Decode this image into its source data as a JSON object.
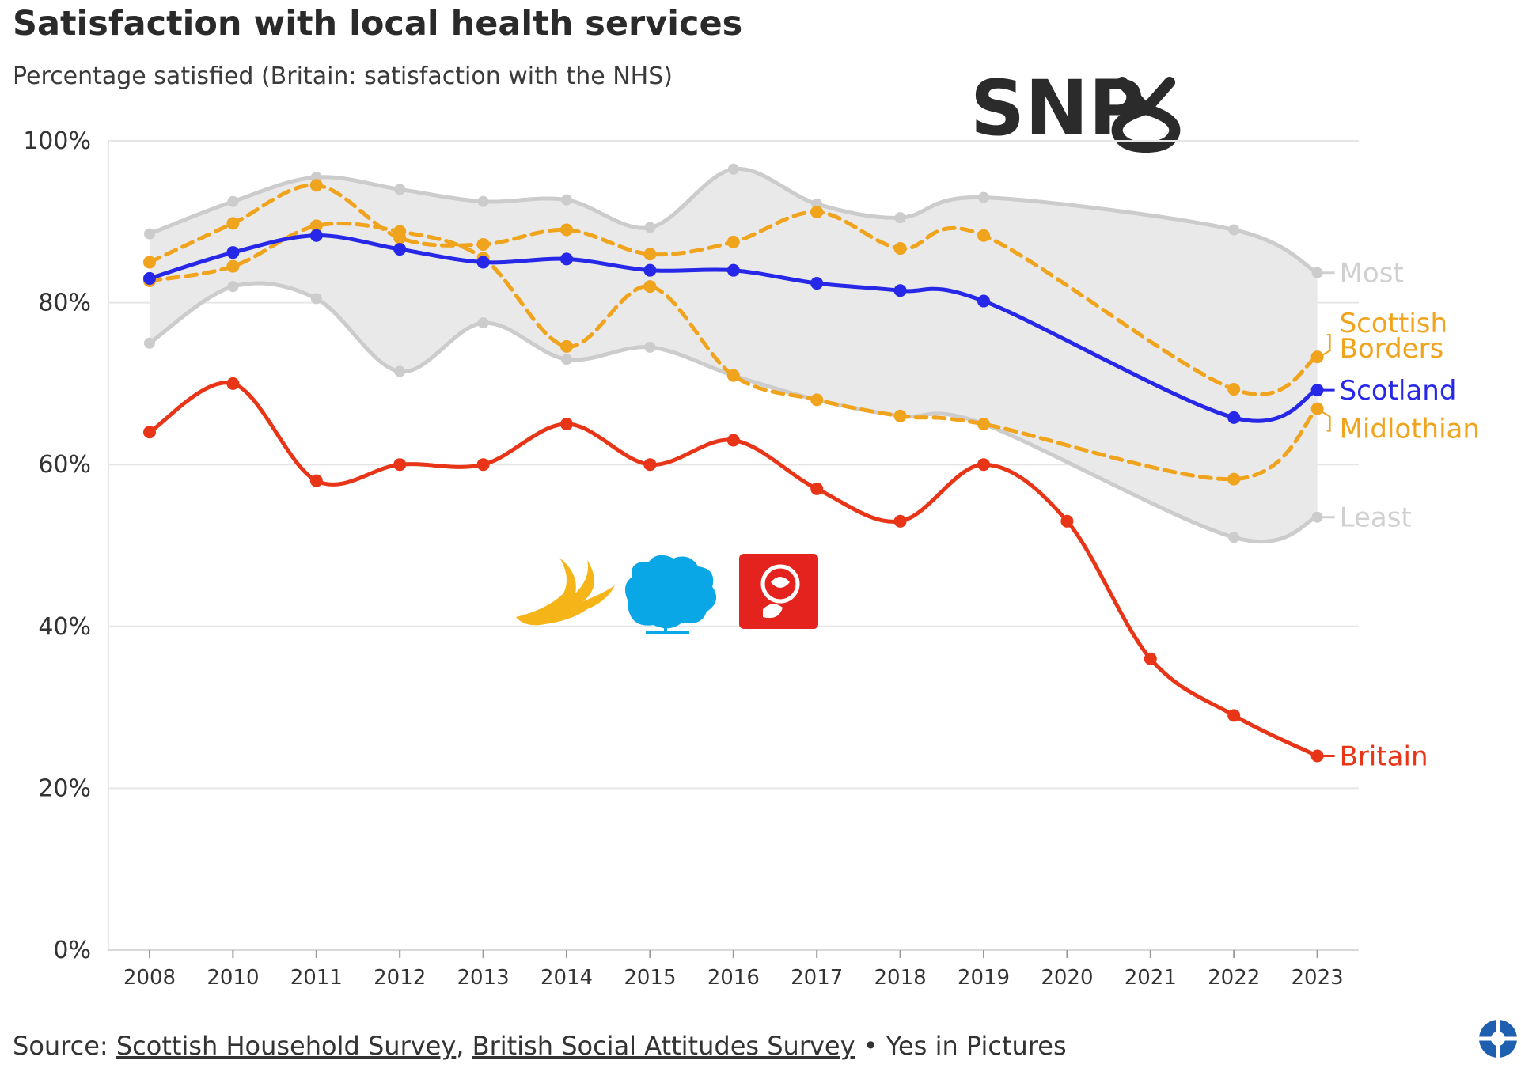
{
  "chart_data": {
    "type": "line",
    "title": "Satisfaction with local health services",
    "subtitle": "Percentage satisfied (Britain: satisfaction with the NHS)",
    "x": [
      "2008",
      "2010",
      "2011",
      "2012",
      "2013",
      "2014",
      "2015",
      "2016",
      "2017",
      "2018",
      "2019",
      "2020",
      "2021",
      "2022",
      "2023"
    ],
    "ylim": [
      0,
      100
    ],
    "yticks": [
      0,
      20,
      40,
      60,
      80,
      100
    ],
    "ytick_labels": [
      "0%",
      "20%",
      "40%",
      "60%",
      "80%",
      "100%"
    ],
    "grid": true,
    "band": {
      "upper_name": "Most",
      "lower_name": "Least",
      "upper": [
        88.5,
        92.5,
        95.5,
        94,
        92.5,
        92.7,
        89.3,
        96.5,
        92.2,
        90.5,
        93,
        null,
        null,
        89,
        83.7
      ],
      "lower": [
        75,
        82,
        80.5,
        71.5,
        77.5,
        73,
        74.5,
        71,
        68,
        66,
        65,
        null,
        null,
        51,
        53.5
      ],
      "color": "#cccccc",
      "fill": "#e9e9e9"
    },
    "series": [
      {
        "name": "Scotland",
        "color": "#2727e8",
        "style": "solid",
        "values": [
          83,
          86.2,
          88.3,
          86.6,
          85,
          85.4,
          84,
          84,
          82.4,
          81.5,
          80.2,
          null,
          null,
          65.8,
          69.2
        ]
      },
      {
        "name": "Scottish Borders",
        "color": "#f0a41e",
        "style": "dashed",
        "values": [
          85,
          89.8,
          94.5,
          88,
          87.2,
          89,
          86,
          87.5,
          91.2,
          86.7,
          88.3,
          null,
          null,
          69.3,
          73.3
        ]
      },
      {
        "name": "Midlothian",
        "color": "#f0a41e",
        "style": "dashed",
        "values": [
          82.7,
          84.5,
          89.5,
          88.8,
          85.5,
          74.6,
          82,
          71,
          68,
          66,
          65,
          null,
          null,
          58.2,
          66.9
        ]
      },
      {
        "name": "Britain",
        "color": "#e83518",
        "style": "solid",
        "values": [
          64,
          70,
          58,
          60,
          60,
          65,
          60,
          63,
          57,
          53,
          60,
          53,
          36,
          29,
          24
        ]
      }
    ],
    "end_labels": [
      {
        "text": "Most",
        "color": "#d0d0d0"
      },
      {
        "text_lines": [
          "Scottish",
          "Borders"
        ],
        "color": "#f0a41e"
      },
      {
        "text": "Scotland",
        "color": "#2727e8"
      },
      {
        "text": "Midlothian",
        "color": "#f0a41e"
      },
      {
        "text": "Least",
        "color": "#d0d0d0"
      },
      {
        "text": "Britain",
        "color": "#e83518"
      }
    ]
  },
  "logos": {
    "snp_text": "SNP",
    "snp_color": "#2b2b2b",
    "libdem_color": "#f5b418",
    "conservative_color": "#0aa7e6",
    "labour_color": "#e4231f"
  },
  "source": {
    "prefix": "Source: ",
    "link1": "Scottish Household Survey",
    "sep": ", ",
    "link2": "British Social Attitudes Survey",
    "suffix": " • Yes in Pictures"
  }
}
